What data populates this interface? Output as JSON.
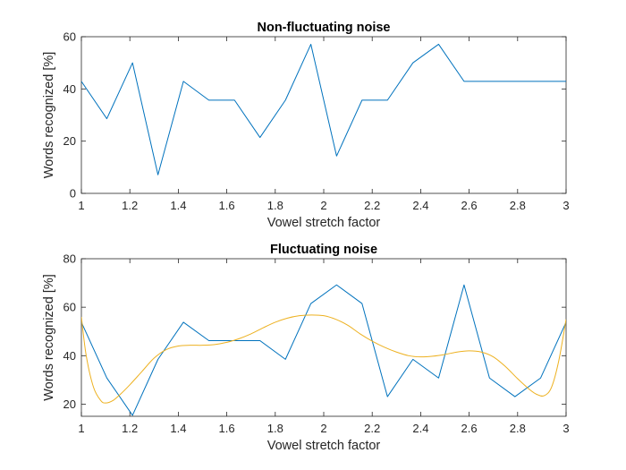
{
  "chart_data": [
    {
      "type": "line",
      "title": "Non-fluctuating noise",
      "xlabel": "Vowel stretch factor",
      "ylabel": "Words recognized [%]",
      "xlim": [
        1,
        3
      ],
      "ylim": [
        0,
        60
      ],
      "xticks": [
        1,
        1.2,
        1.4,
        1.6,
        1.8,
        2,
        2.2,
        2.4,
        2.6,
        2.8,
        3
      ],
      "xtick_labels": [
        "1",
        "1.2",
        "1.4",
        "1.6",
        "1.8",
        "2",
        "2.2",
        "2.4",
        "2.6",
        "2.8",
        "3"
      ],
      "yticks": [
        0,
        20,
        40,
        60
      ],
      "ytick_labels": [
        "0",
        "20",
        "40",
        "60"
      ],
      "grid": false,
      "series": [
        {
          "color": "#0072BD",
          "style": "line",
          "x": [
            1,
            1.105,
            1.211,
            1.316,
            1.421,
            1.526,
            1.632,
            1.737,
            1.842,
            1.947,
            2.053,
            2.158,
            2.263,
            2.368,
            2.474,
            2.579,
            2.684,
            2.789,
            2.895,
            3
          ],
          "y": [
            42.9,
            28.6,
            50.0,
            7.1,
            42.9,
            35.7,
            35.7,
            21.4,
            35.7,
            57.1,
            14.3,
            35.7,
            35.7,
            50.0,
            57.1,
            42.9,
            42.9,
            42.9,
            42.9,
            42.9
          ]
        }
      ]
    },
    {
      "type": "line",
      "title": "Fluctuating noise",
      "xlabel": "Vowel stretch factor",
      "ylabel": "Words recognized [%]",
      "xlim": [
        1,
        3
      ],
      "ylim": [
        15,
        80
      ],
      "xticks": [
        1,
        1.2,
        1.4,
        1.6,
        1.8,
        2,
        2.2,
        2.4,
        2.6,
        2.8,
        3
      ],
      "xtick_labels": [
        "1",
        "1.2",
        "1.4",
        "1.6",
        "1.8",
        "2",
        "2.2",
        "2.4",
        "2.6",
        "2.8",
        "3"
      ],
      "yticks": [
        20,
        40,
        60,
        80
      ],
      "ytick_labels": [
        "20",
        "40",
        "60",
        "80"
      ],
      "grid": false,
      "series": [
        {
          "color": "#0072BD",
          "style": "line",
          "x": [
            1,
            1.105,
            1.211,
            1.316,
            1.421,
            1.526,
            1.632,
            1.737,
            1.842,
            1.947,
            2.053,
            2.158,
            2.263,
            2.368,
            2.474,
            2.579,
            2.684,
            2.789,
            2.895,
            3
          ],
          "y": [
            53.8,
            30.8,
            15.4,
            38.5,
            53.8,
            46.2,
            46.2,
            46.2,
            38.5,
            61.5,
            69.2,
            61.5,
            23.1,
            38.5,
            30.8,
            69.2,
            30.8,
            23.1,
            30.8,
            53.8
          ]
        },
        {
          "color": "#EDB120",
          "style": "smooth",
          "x": [
            1,
            1.02,
            1.05,
            1.08,
            1.1,
            1.13,
            1.16,
            1.2,
            1.25,
            1.3,
            1.35,
            1.4,
            1.45,
            1.5,
            1.55,
            1.6,
            1.65,
            1.7,
            1.75,
            1.8,
            1.85,
            1.9,
            1.95,
            2,
            2.05,
            2.1,
            2.15,
            2.2,
            2.25,
            2.3,
            2.35,
            2.4,
            2.45,
            2.5,
            2.55,
            2.6,
            2.65,
            2.7,
            2.75,
            2.8,
            2.85,
            2.88,
            2.91,
            2.94,
            2.97,
            3
          ],
          "y": [
            56.0,
            40.0,
            27.0,
            21.5,
            20.5,
            21.5,
            24.0,
            28.0,
            33.5,
            39.0,
            42.5,
            44.0,
            44.3,
            44.3,
            44.6,
            45.5,
            47.0,
            49.0,
            51.5,
            53.8,
            55.5,
            56.5,
            56.8,
            56.5,
            55.0,
            52.5,
            49.0,
            46.0,
            43.5,
            41.5,
            40.0,
            39.5,
            39.8,
            40.5,
            41.5,
            42.0,
            41.5,
            39.5,
            35.5,
            30.5,
            26.0,
            24.0,
            23.5,
            27.0,
            38.0,
            55.0
          ]
        }
      ]
    }
  ]
}
